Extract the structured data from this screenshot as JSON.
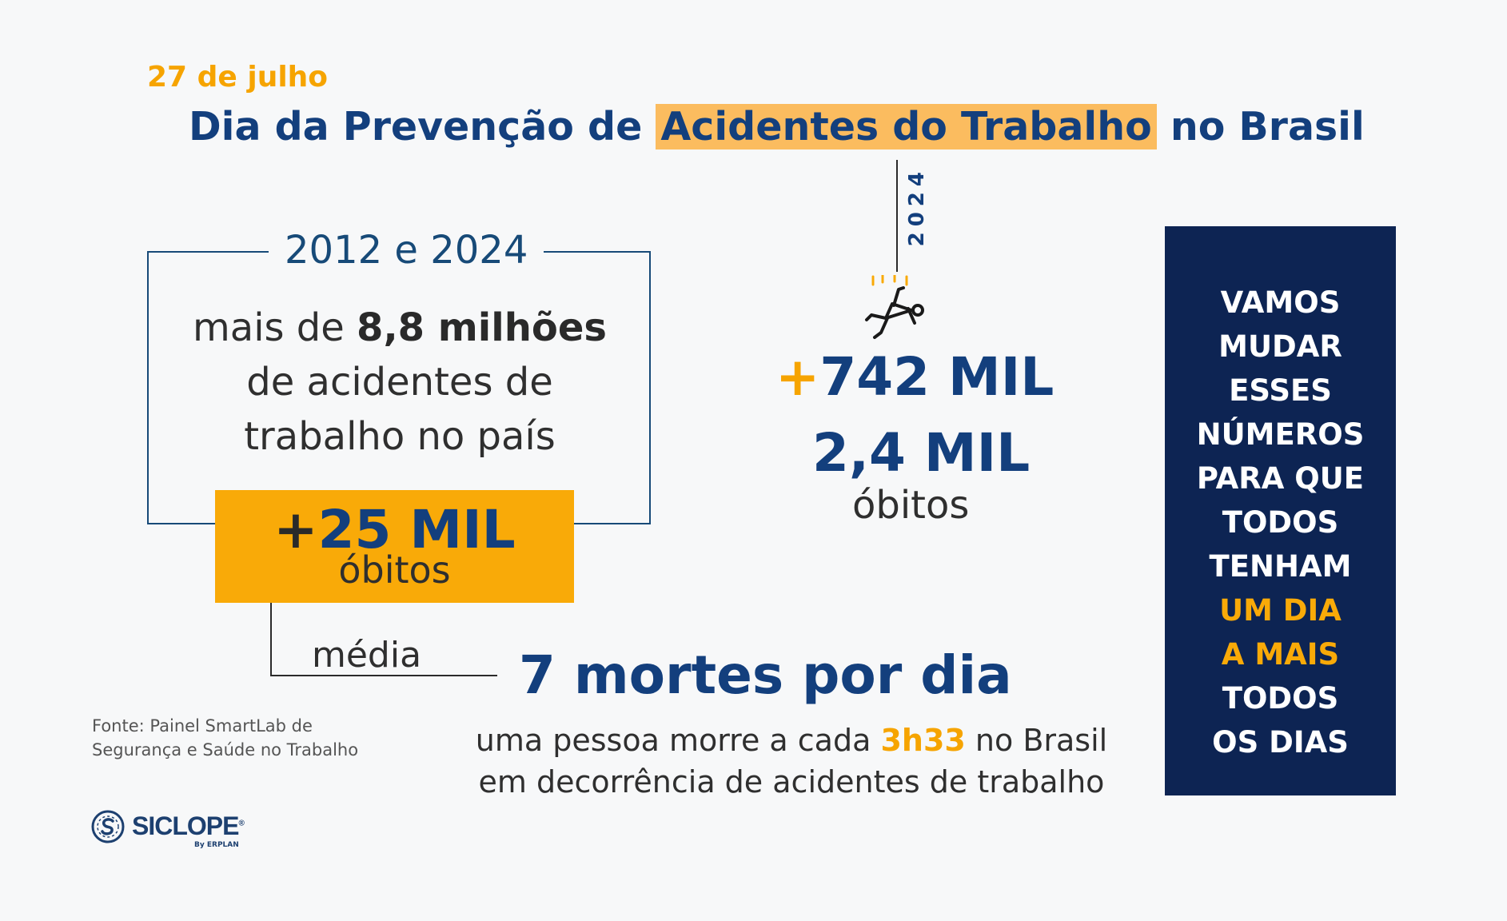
{
  "header": {
    "date": "27 de julho",
    "title_before": "Dia da Prevenção de ",
    "title_highlight": "Acidentes do Trabalho",
    "title_after": " no Brasil"
  },
  "timeline": {
    "year": "2024"
  },
  "period_box": {
    "period": "2012 e 2024",
    "line1_before": "mais de ",
    "line1_bold": "8,8 milhões",
    "line2": "de acidentes de",
    "line3": "trabalho no país",
    "deaths_plus": "+",
    "deaths_value": "25 MIL",
    "deaths_label": "óbitos"
  },
  "average": {
    "label": "média",
    "value": "7 mortes por dia"
  },
  "year_stats": {
    "accidents_plus": "+",
    "accidents_value": "742 MIL",
    "deaths_value": "2,4 MIL",
    "deaths_label": "óbitos"
  },
  "rate": {
    "before": "uma pessoa morre a cada ",
    "highlight": "3h33",
    "after": " no Brasil",
    "line2": "em decorrência de acidentes de trabalho"
  },
  "source": {
    "line1": "Fonte: Painel SmartLab de",
    "line2": "Segurança e Saúde no Trabalho"
  },
  "logo": {
    "name": "SICLOPE",
    "registered": "®",
    "subtitle": "By ERPLAN"
  },
  "call_to_action": {
    "lines": [
      "VAMOS",
      "MUDAR",
      "ESSES",
      "NÚMEROS",
      "PARA QUE",
      "TODOS",
      "TENHAM",
      "UM DIA",
      "A MAIS",
      "TODOS",
      "OS DIAS"
    ],
    "highlight_lines": [
      "UM DIA",
      "A MAIS"
    ]
  },
  "colors": {
    "navy": "#133f7d",
    "dark_navy": "#0d2453",
    "orange": "#f9aa08",
    "light_orange": "#fbbc5f",
    "background": "#f7f8f9"
  },
  "icons": {
    "falling_person": "falling-person-icon",
    "logo_mark": "siclope-logo-icon"
  }
}
